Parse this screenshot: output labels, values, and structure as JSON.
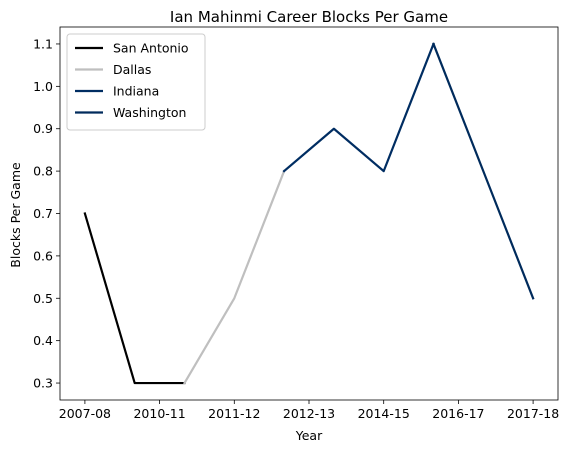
{
  "chart_data": {
    "type": "line",
    "title": "Ian Mahinmi Career Blocks Per Game",
    "xlabel": "Year",
    "ylabel": "Blocks Per Game",
    "x_tick_labels": [
      "2007-08",
      "2010-11",
      "2011-12",
      "2012-13",
      "2014-15",
      "2016-17",
      "2017-18"
    ],
    "y_ticks": [
      0.3,
      0.4,
      0.5,
      0.6,
      0.7,
      0.8,
      0.9,
      1.0,
      1.1
    ],
    "y_tick_labels": [
      "0.3",
      "0.4",
      "0.5",
      "0.6",
      "0.7",
      "0.8",
      "0.9",
      "1.0",
      "1.1"
    ],
    "ylim": [
      0.26,
      1.14
    ],
    "xlim": [
      -0.5,
      9.5
    ],
    "legend_position": "upper-left",
    "grid": false,
    "series": [
      {
        "name": "San Antonio",
        "color": "#000000",
        "x": [
          0,
          1,
          2
        ],
        "y": [
          0.7,
          0.3,
          0.3
        ]
      },
      {
        "name": "Dallas",
        "color": "#bfbfbf",
        "x": [
          2,
          3,
          4
        ],
        "y": [
          0.3,
          0.5,
          0.8
        ]
      },
      {
        "name": "Indiana",
        "color": "#002d62",
        "x": [
          4,
          5,
          6,
          7
        ],
        "y": [
          0.8,
          0.9,
          0.8,
          1.1
        ]
      },
      {
        "name": "Washington",
        "color": "#002b5c",
        "x": [
          7,
          8,
          9
        ],
        "y": [
          1.1,
          0.8,
          0.5
        ]
      }
    ]
  }
}
